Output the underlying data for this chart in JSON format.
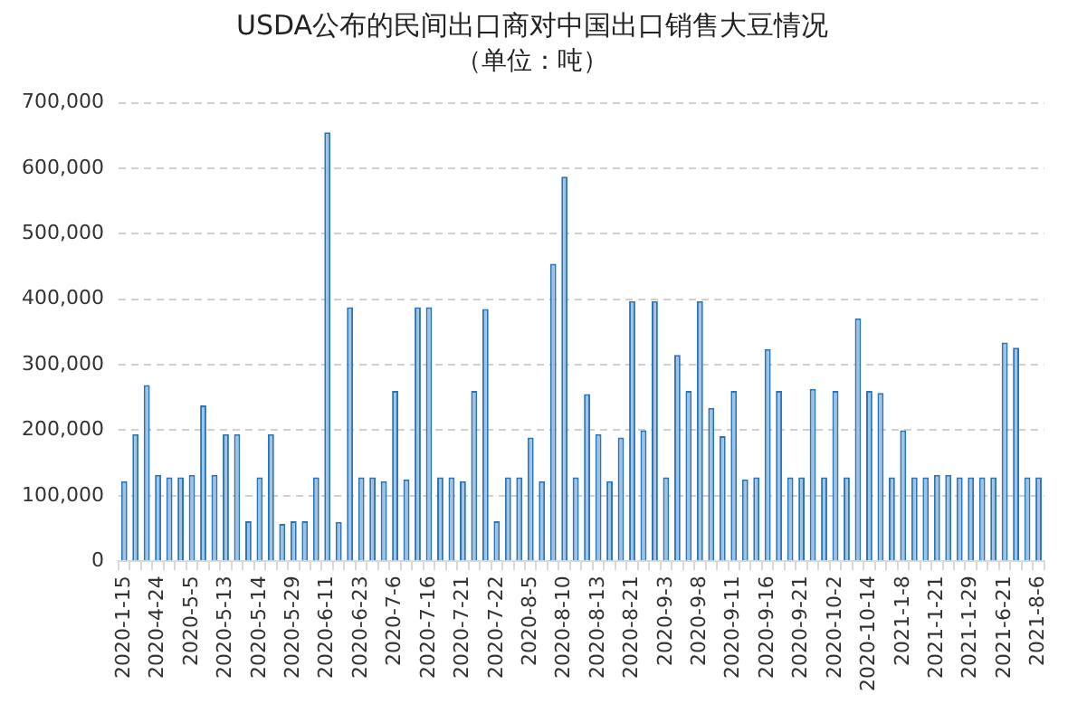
{
  "chart_data": {
    "type": "bar",
    "title": "USDA公布的民间出口商对中国出口销售大豆情况",
    "subtitle": "（单位：吨）",
    "categories": [
      "2020-1-15",
      null,
      null,
      "2020-4-24",
      null,
      null,
      "2020-5-5",
      null,
      null,
      "2020-5-13",
      null,
      null,
      "2020-5-14",
      null,
      null,
      "2020-5-29",
      null,
      null,
      "2020-6-11",
      null,
      null,
      "2020-6-23",
      null,
      null,
      "2020-7-6",
      null,
      null,
      "2020-7-16",
      null,
      null,
      "2020-7-21",
      null,
      null,
      "2020-7-22",
      null,
      null,
      "2020-8-5",
      null,
      null,
      "2020-8-10",
      null,
      null,
      "2020-8-13",
      null,
      null,
      "2020-8-21",
      null,
      null,
      "2020-9-3",
      null,
      null,
      "2020-9-8",
      null,
      null,
      "2020-9-11",
      null,
      null,
      "2020-9-16",
      null,
      null,
      "2020-9-21",
      null,
      null,
      "2020-10-2",
      null,
      null,
      "2020-10-14",
      null,
      null,
      "2021-1-8",
      null,
      null,
      "2021-1-21",
      null,
      null,
      "2021-1-29",
      null,
      null,
      "2021-6-21",
      null,
      null,
      "2021-8-6"
    ],
    "values": [
      122000,
      194000,
      269000,
      132000,
      128000,
      128000,
      132000,
      238000,
      132000,
      194000,
      194000,
      61000,
      128000,
      194000,
      57000,
      61000,
      61000,
      128000,
      655000,
      60000,
      388000,
      128000,
      128000,
      122000,
      260000,
      125000,
      388000,
      388000,
      128000,
      128000,
      122000,
      260000,
      385000,
      61000,
      128000,
      128000,
      189000,
      122000,
      454000,
      587000,
      128000,
      255000,
      194000,
      122000,
      189000,
      397000,
      200000,
      397000,
      128000,
      315000,
      260000,
      397000,
      234000,
      191000,
      260000,
      125000,
      128000,
      324000,
      260000,
      128000,
      128000,
      263000,
      128000,
      260000,
      128000,
      371000,
      260000,
      257000,
      128000,
      200000,
      128000,
      128000,
      132000,
      132000,
      128000,
      128000,
      128000,
      128000,
      334000,
      326000,
      128000,
      128000
    ],
    "color": "#9dc3e6",
    "ylim": [
      0,
      700000
    ],
    "yticks": [
      0,
      {
        "value": 100000,
        "label": "100,000"
      },
      {
        "value": 200000,
        "label": "200,000"
      },
      {
        "value": 300000,
        "label": "300,000"
      },
      {
        "value": 400000,
        "label": "400,000"
      },
      {
        "value": 500000,
        "label": "500,000"
      },
      {
        "value": 600000,
        "label": "600,000"
      },
      {
        "value": 700000,
        "label": "700,000"
      }
    ],
    "grid": "y"
  }
}
